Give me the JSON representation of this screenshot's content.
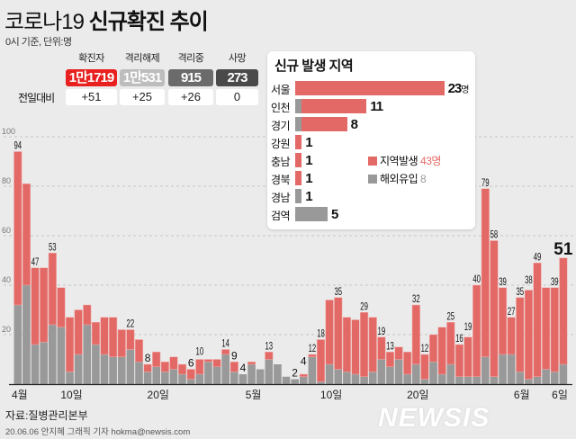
{
  "header": {
    "title_light": "코로나19",
    "title_bold": "신규확진 추이",
    "subtitle": "0시 기준, 단위:명"
  },
  "summary": {
    "diff_label": "전일대비",
    "items": [
      {
        "label": "확진자",
        "value": "1만1719",
        "diff": "+51",
        "color": "#e8201f"
      },
      {
        "label": "격리해제",
        "value": "1만531",
        "diff": "+25",
        "color": "#bdbdbd"
      },
      {
        "label": "격리중",
        "value": "915",
        "diff": "+26",
        "color": "#6b6b6b"
      },
      {
        "label": "사망",
        "value": "273",
        "diff": "0",
        "color": "#4a4a4a"
      }
    ]
  },
  "region_panel": {
    "title": "신규 발생 지역",
    "unit": "명",
    "regions": [
      {
        "name": "서울",
        "local": 23,
        "imported": 0,
        "total": "23"
      },
      {
        "name": "인천",
        "local": 10,
        "imported": 1,
        "total": "11"
      },
      {
        "name": "경기",
        "local": 7,
        "imported": 1,
        "total": "8"
      },
      {
        "name": "강원",
        "local": 1,
        "imported": 0,
        "total": "1"
      },
      {
        "name": "충남",
        "local": 1,
        "imported": 0,
        "total": "1"
      },
      {
        "name": "경북",
        "local": 1,
        "imported": 0,
        "total": "1"
      },
      {
        "name": "경남",
        "local": 0,
        "imported": 1,
        "total": "1"
      },
      {
        "name": "검역",
        "local": 0,
        "imported": 5,
        "total": "5"
      }
    ],
    "legend": [
      {
        "label": "지역발생",
        "value": "43명",
        "color": "#e36966"
      },
      {
        "label": "해외유입",
        "value": "8",
        "color": "#999999"
      }
    ]
  },
  "chart_data": {
    "type": "bar",
    "stacked": true,
    "ylim": [
      0,
      100
    ],
    "yticks": [
      "20",
      "40",
      "60",
      "80",
      "100"
    ],
    "grid": true,
    "xtick_labels": [
      {
        "label": "4월",
        "date": "04-04"
      },
      {
        "label": "10일",
        "date": "04-10"
      },
      {
        "label": "20일",
        "date": "04-20"
      },
      {
        "label": "5월",
        "date": "05-01"
      },
      {
        "label": "10일",
        "date": "05-10"
      },
      {
        "label": "20일",
        "date": "05-20"
      },
      {
        "label": "6월",
        "date": "06-01"
      },
      {
        "label": "6일",
        "date": "06-06"
      }
    ],
    "categories": [
      "04-04",
      "04-05",
      "04-06",
      "04-07",
      "04-08",
      "04-09",
      "04-10",
      "04-11",
      "04-12",
      "04-13",
      "04-14",
      "04-15",
      "04-16",
      "04-17",
      "04-18",
      "04-19",
      "04-20",
      "04-21",
      "04-22",
      "04-23",
      "04-24",
      "04-25",
      "04-26",
      "04-27",
      "04-28",
      "04-29",
      "04-30",
      "05-01",
      "05-02",
      "05-03",
      "05-04",
      "05-05",
      "05-06",
      "05-07",
      "05-08",
      "05-09",
      "05-10",
      "05-11",
      "05-12",
      "05-13",
      "05-14",
      "05-15",
      "05-16",
      "05-17",
      "05-18",
      "05-19",
      "05-20",
      "05-21",
      "05-22",
      "05-23",
      "05-24",
      "05-25",
      "05-26",
      "05-27",
      "05-28",
      "05-29",
      "05-30",
      "05-31",
      "06-01",
      "06-02",
      "06-03",
      "06-04",
      "06-05",
      "06-06"
    ],
    "series": [
      {
        "name": "해외유입",
        "color": "#999999",
        "values": [
          32,
          40,
          16,
          17,
          24,
          23,
          5,
          12,
          24,
          16,
          12,
          11,
          11,
          14,
          9,
          5,
          7,
          5,
          6,
          4,
          2,
          4,
          9,
          7,
          12,
          5,
          4,
          8,
          6,
          10,
          8,
          3,
          2,
          3,
          11,
          1,
          8,
          6,
          5,
          4,
          3,
          5,
          10,
          7,
          10,
          4,
          8,
          2,
          9,
          4,
          8,
          3,
          3,
          3,
          11,
          3,
          12,
          12,
          5,
          2,
          3,
          6,
          5,
          8
        ]
      },
      {
        "name": "지역발생",
        "color": "#e36966",
        "values": [
          62,
          41,
          31,
          30,
          29,
          16,
          22,
          18,
          8,
          9,
          15,
          16,
          11,
          8,
          9,
          3,
          6,
          4,
          5,
          4,
          4,
          6,
          1,
          3,
          2,
          4,
          0,
          1,
          0,
          3,
          0,
          0,
          0,
          1,
          1,
          17,
          26,
          29,
          22,
          22,
          26,
          22,
          9,
          6,
          5,
          9,
          24,
          10,
          11,
          19,
          17,
          13,
          16,
          37,
          68,
          55,
          27,
          15,
          30,
          36,
          46,
          33,
          34,
          43
        ]
      }
    ],
    "totals": [
      94,
      81,
      47,
      47,
      53,
      39,
      27,
      30,
      32,
      25,
      27,
      27,
      22,
      22,
      18,
      8,
      13,
      9,
      11,
      8,
      6,
      10,
      10,
      10,
      14,
      9,
      4,
      9,
      6,
      13,
      8,
      3,
      2,
      4,
      12,
      18,
      34,
      35,
      27,
      26,
      29,
      27,
      19,
      13,
      15,
      13,
      32,
      12,
      20,
      23,
      25,
      16,
      19,
      40,
      79,
      58,
      39,
      27,
      35,
      38,
      49,
      39,
      39,
      51
    ],
    "labeled": [
      1,
      0,
      1,
      0,
      1,
      0,
      0,
      0,
      0,
      0,
      0,
      0,
      0,
      1,
      0,
      1,
      0,
      0,
      0,
      0,
      1,
      1,
      0,
      0,
      1,
      1,
      1,
      0,
      0,
      1,
      0,
      0,
      1,
      1,
      1,
      1,
      0,
      1,
      0,
      0,
      1,
      0,
      1,
      1,
      0,
      0,
      1,
      1,
      0,
      0,
      1,
      1,
      1,
      1,
      1,
      1,
      1,
      1,
      1,
      1,
      1,
      0,
      1,
      1
    ]
  },
  "footer": {
    "source": "자료:질병관리본부",
    "credit": "20.06.06 안지혜 그래픽 기자 hokma@newsis.com",
    "logo": "NEWSIS"
  }
}
